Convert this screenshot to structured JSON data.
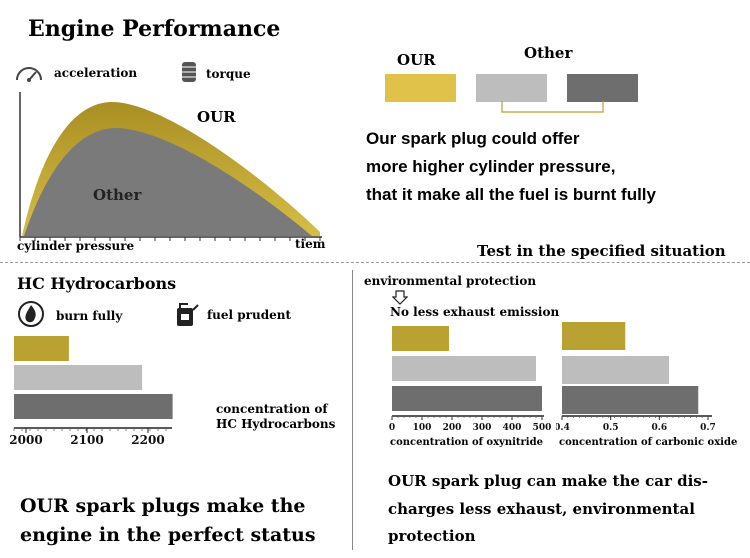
{
  "engine": {
    "title": "Engine Performance",
    "legend_acceleration": "acceleration",
    "legend_torque": "torque",
    "label_our": "OUR",
    "label_other": "Other",
    "xlabel": "cylinder pressure",
    "x_end_label": "tiem",
    "colors": {
      "our": "#b9a231",
      "other": "#7a7a7a"
    }
  },
  "legend": {
    "our": "OUR",
    "other": "Other",
    "swatches": [
      "#e0c24a",
      "#bdbdbd",
      "#6e6e6e"
    ]
  },
  "claim": {
    "lines": [
      "Our spark plug could offer",
      "more higher cylinder pressure,",
      "that it make all the fuel is burnt fully"
    ]
  },
  "test_note": "Test in the specified situation",
  "hc": {
    "title": "HC Hydrocarbons",
    "icon_burn": "burn fully",
    "icon_fuel": "fuel prudent",
    "axis_label_1": "concentration of",
    "axis_label_2": "HC Hydrocarbons",
    "tagline_1": "OUR spark plugs make the",
    "tagline_2": "engine in the perfect status"
  },
  "env": {
    "label": "environmental protection",
    "sublabel": "No less exhaust emission",
    "xlabel_oxy": "concentration of oxynitride",
    "xlabel_co": "concentration of carbonic oxide",
    "tagline_1": "OUR spark plug can make the car dis-",
    "tagline_2": "charges less exhaust, environmental",
    "tagline_3": "protection"
  },
  "chart_data": [
    {
      "type": "area",
      "title": "Engine Performance",
      "xlabel": "cylinder pressure",
      "series": [
        {
          "name": "OUR",
          "shape": "higher peak"
        },
        {
          "name": "Other",
          "shape": "lower peak"
        }
      ]
    },
    {
      "type": "bar",
      "orientation": "horizontal",
      "title": "HC Hydrocarbons",
      "xlabel": "concentration of HC Hydrocarbons",
      "ticks": [
        2000,
        2100,
        2200
      ],
      "xlim": [
        2000,
        2250
      ],
      "values": [
        2090,
        2210,
        2260
      ],
      "colors": [
        "#b9a231",
        "#bdbdbd",
        "#6e6e6e"
      ]
    },
    {
      "type": "bar",
      "orientation": "horizontal",
      "xlabel": "concentration of oxynitride",
      "ticks": [
        0,
        100,
        200,
        300,
        400,
        500
      ],
      "xlim": [
        0,
        500
      ],
      "values": [
        190,
        480,
        500
      ],
      "colors": [
        "#b9a231",
        "#bdbdbd",
        "#6e6e6e"
      ]
    },
    {
      "type": "bar",
      "orientation": "horizontal",
      "xlabel": "concentration of carbonic oxide",
      "ticks": [
        0.4,
        0.5,
        0.6,
        0.7
      ],
      "xlim": [
        0.4,
        0.7
      ],
      "values": [
        0.53,
        0.62,
        0.68
      ],
      "colors": [
        "#b9a231",
        "#bdbdbd",
        "#6e6e6e"
      ]
    }
  ]
}
